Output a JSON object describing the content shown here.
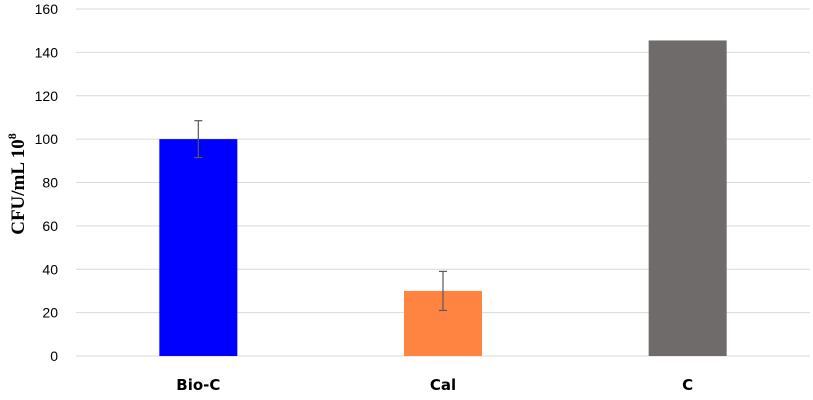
{
  "chart_data": {
    "type": "bar",
    "categories": [
      "Bio-C",
      "Cal",
      "C"
    ],
    "values": [
      100,
      30,
      145.5
    ],
    "error": [
      8.5,
      9,
      null
    ],
    "colors": [
      "#0000ff",
      "#ff8442",
      "#6f6b6a"
    ],
    "ylabel": "CFU/mL 10",
    "ylabel_superscript": "8",
    "ylim": [
      0,
      160
    ],
    "yticks": [
      0,
      20,
      40,
      60,
      80,
      100,
      120,
      140,
      160
    ],
    "grid": true,
    "legend": "none"
  }
}
